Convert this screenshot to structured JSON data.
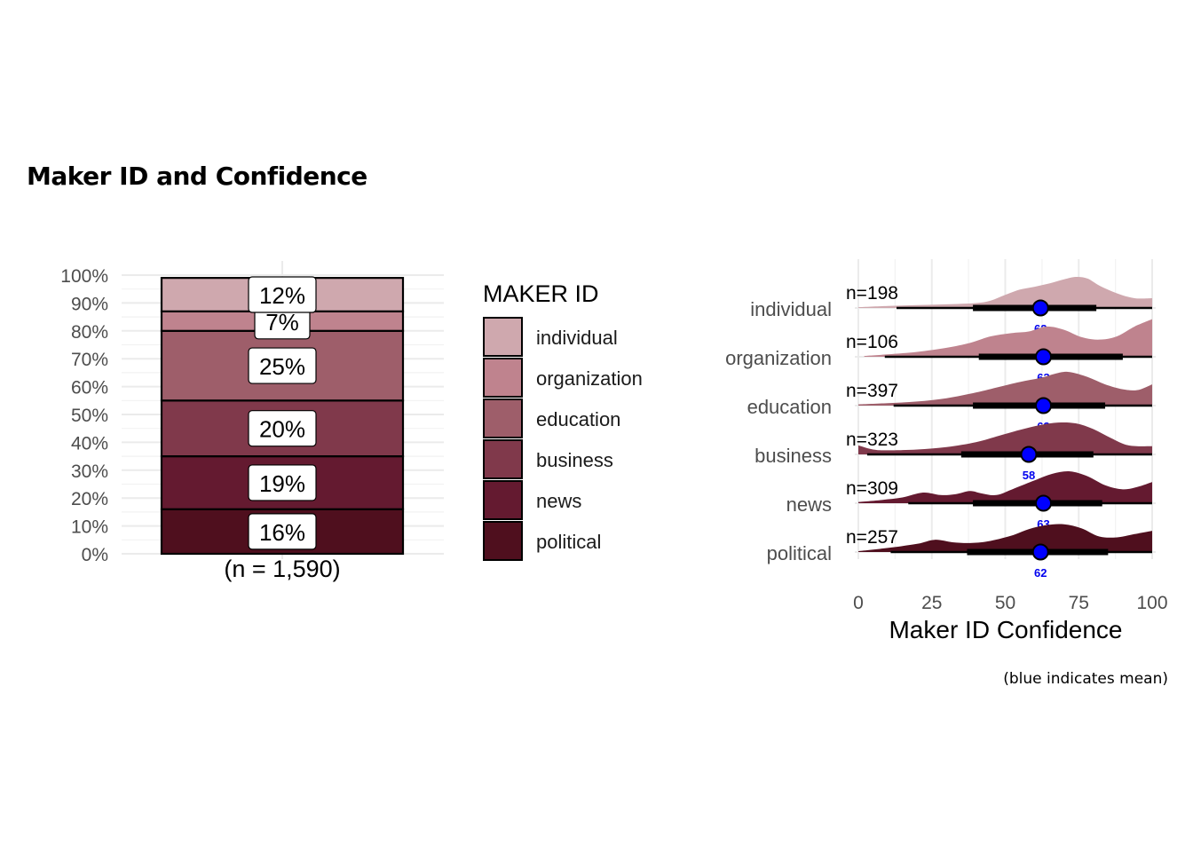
{
  "title": "Maker ID and Confidence",
  "caption": "(blue indicates mean)",
  "colors": {
    "individual": "#cfa8ae",
    "organization": "#bf838e",
    "education": "#9e5e6a",
    "business": "#80394b",
    "news": "#641a30",
    "political": "#4f0f1e",
    "mean_point": "#0000ff",
    "mean_label": "#0000ee"
  },
  "chart_data": [
    {
      "type": "bar",
      "subtype": "stacked-100",
      "category_label": "(n = 1,590)",
      "y_tick_labels": [
        "0%",
        "10%",
        "20%",
        "30%",
        "40%",
        "50%",
        "60%",
        "70%",
        "80%",
        "90%",
        "100%"
      ],
      "ylim": [
        0,
        100
      ],
      "series": [
        {
          "name": "political",
          "value": 16,
          "label": "16%"
        },
        {
          "name": "news",
          "value": 19,
          "label": "19%"
        },
        {
          "name": "business",
          "value": 20,
          "label": "20%"
        },
        {
          "name": "education",
          "value": 25,
          "label": "25%"
        },
        {
          "name": "organization",
          "value": 7,
          "label": "7%"
        },
        {
          "name": "individual",
          "value": 12,
          "label": "12%"
        }
      ],
      "legend": {
        "title": "MAKER ID",
        "position": "right",
        "items": [
          "individual",
          "organization",
          "education",
          "business",
          "news",
          "political"
        ]
      }
    },
    {
      "type": "area",
      "subtype": "ridgeline-density-with-interval",
      "xlabel": "Maker ID Confidence",
      "xlim": [
        0,
        100
      ],
      "x_ticks": [
        0,
        25,
        50,
        75,
        100
      ],
      "grid": true,
      "categories": [
        "individual",
        "organization",
        "education",
        "business",
        "news",
        "political"
      ],
      "series": [
        {
          "name": "individual",
          "n_label": "n=198",
          "mean": 62,
          "mean_label": "62",
          "interval_thin": [
            13,
            100
          ],
          "interval_thick": [
            39,
            81
          ],
          "density": [
            [
              0,
              0.02
            ],
            [
              10,
              0.05
            ],
            [
              20,
              0.07
            ],
            [
              30,
              0.09
            ],
            [
              40,
              0.12
            ],
            [
              45,
              0.18
            ],
            [
              50,
              0.32
            ],
            [
              55,
              0.45
            ],
            [
              60,
              0.52
            ],
            [
              65,
              0.6
            ],
            [
              70,
              0.7
            ],
            [
              74,
              0.76
            ],
            [
              78,
              0.72
            ],
            [
              82,
              0.55
            ],
            [
              88,
              0.36
            ],
            [
              94,
              0.24
            ],
            [
              100,
              0.24
            ]
          ]
        },
        {
          "name": "organization",
          "n_label": "n=106",
          "mean": 63,
          "mean_label": "63",
          "interval_thin": [
            9,
            100
          ],
          "interval_thick": [
            41,
            90
          ],
          "density": [
            [
              2,
              0.02
            ],
            [
              10,
              0.06
            ],
            [
              20,
              0.12
            ],
            [
              30,
              0.22
            ],
            [
              38,
              0.34
            ],
            [
              45,
              0.5
            ],
            [
              52,
              0.58
            ],
            [
              58,
              0.62
            ],
            [
              64,
              0.74
            ],
            [
              70,
              0.66
            ],
            [
              76,
              0.48
            ],
            [
              82,
              0.42
            ],
            [
              88,
              0.5
            ],
            [
              94,
              0.74
            ],
            [
              100,
              0.92
            ]
          ]
        },
        {
          "name": "education",
          "n_label": "n=397",
          "mean": 63,
          "mean_label": "63",
          "interval_thin": [
            12,
            100
          ],
          "interval_thick": [
            39,
            84
          ],
          "density": [
            [
              0,
              0.03
            ],
            [
              10,
              0.06
            ],
            [
              20,
              0.1
            ],
            [
              30,
              0.18
            ],
            [
              40,
              0.32
            ],
            [
              48,
              0.46
            ],
            [
              55,
              0.58
            ],
            [
              62,
              0.68
            ],
            [
              68,
              0.8
            ],
            [
              72,
              0.82
            ],
            [
              78,
              0.7
            ],
            [
              84,
              0.52
            ],
            [
              90,
              0.4
            ],
            [
              95,
              0.38
            ],
            [
              100,
              0.52
            ]
          ]
        },
        {
          "name": "business",
          "n_label": "n=323",
          "mean": 58,
          "mean_label": "58",
          "interval_thin": [
            3,
            100
          ],
          "interval_thick": [
            35,
            80
          ],
          "density": [
            [
              0,
              0.22
            ],
            [
              5,
              0.12
            ],
            [
              10,
              0.1
            ],
            [
              20,
              0.12
            ],
            [
              30,
              0.18
            ],
            [
              40,
              0.3
            ],
            [
              48,
              0.46
            ],
            [
              55,
              0.6
            ],
            [
              62,
              0.72
            ],
            [
              68,
              0.78
            ],
            [
              74,
              0.76
            ],
            [
              80,
              0.62
            ],
            [
              86,
              0.4
            ],
            [
              92,
              0.22
            ],
            [
              100,
              0.2
            ]
          ]
        },
        {
          "name": "news",
          "n_label": "n=309",
          "mean": 63,
          "mean_label": "63",
          "interval_thin": [
            17,
            100
          ],
          "interval_thick": [
            39,
            83
          ],
          "density": [
            [
              0,
              0.03
            ],
            [
              8,
              0.08
            ],
            [
              15,
              0.14
            ],
            [
              22,
              0.26
            ],
            [
              28,
              0.2
            ],
            [
              33,
              0.22
            ],
            [
              38,
              0.3
            ],
            [
              42,
              0.24
            ],
            [
              47,
              0.2
            ],
            [
              53,
              0.36
            ],
            [
              60,
              0.56
            ],
            [
              66,
              0.72
            ],
            [
              72,
              0.78
            ],
            [
              78,
              0.66
            ],
            [
              84,
              0.44
            ],
            [
              90,
              0.34
            ],
            [
              95,
              0.4
            ],
            [
              100,
              0.52
            ]
          ]
        },
        {
          "name": "political",
          "n_label": "n=257",
          "mean": 62,
          "mean_label": "62",
          "interval_thin": [
            11,
            100
          ],
          "interval_thick": [
            37,
            85
          ],
          "density": [
            [
              0,
              0.02
            ],
            [
              10,
              0.1
            ],
            [
              20,
              0.2
            ],
            [
              26,
              0.3
            ],
            [
              32,
              0.24
            ],
            [
              38,
              0.22
            ],
            [
              44,
              0.26
            ],
            [
              52,
              0.4
            ],
            [
              58,
              0.56
            ],
            [
              64,
              0.66
            ],
            [
              70,
              0.68
            ],
            [
              76,
              0.58
            ],
            [
              82,
              0.38
            ],
            [
              88,
              0.36
            ],
            [
              94,
              0.44
            ],
            [
              100,
              0.52
            ]
          ]
        }
      ]
    }
  ]
}
